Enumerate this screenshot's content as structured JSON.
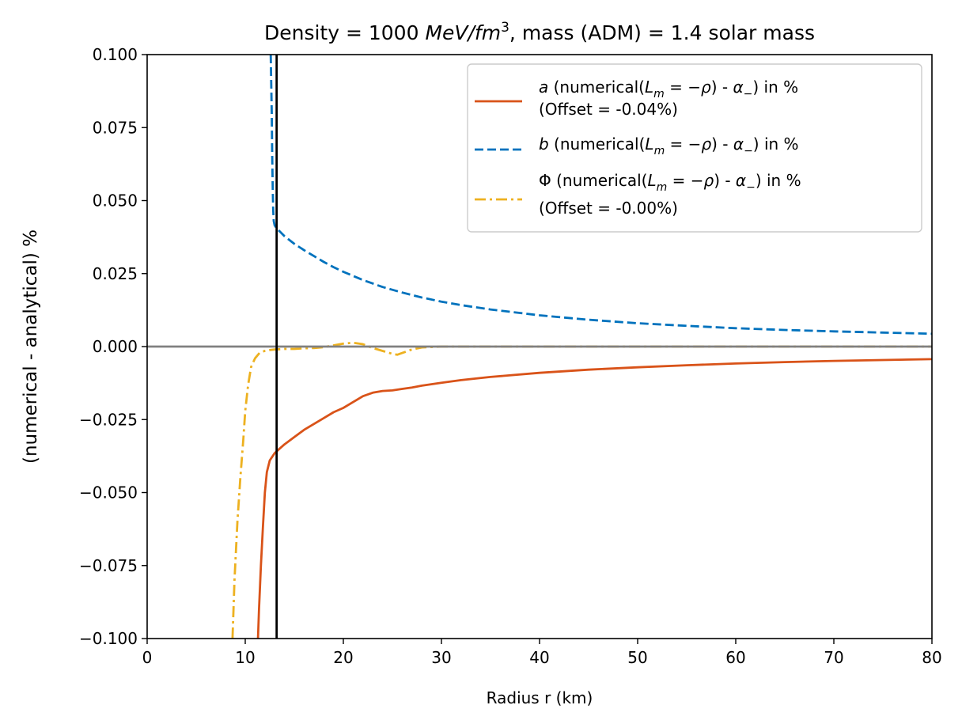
{
  "chart_data": {
    "type": "line",
    "title": "Density = 1000 MeV/fm³, mass (ADM) = 1.4 solar mass",
    "title_parts": {
      "prefix": "Density = 1000 ",
      "italic": "MeV/fm",
      "sup": "3",
      "suffix": ", mass (ADM) = 1.4 solar mass"
    },
    "xlabel": "Radius r (km)",
    "ylabel": "(numerical - analytical) %",
    "xlim": [
      0,
      80
    ],
    "ylim": [
      -0.1,
      0.1
    ],
    "xticks": [
      0,
      10,
      20,
      30,
      40,
      50,
      60,
      70,
      80
    ],
    "xtick_labels": [
      "0",
      "10",
      "20",
      "30",
      "40",
      "50",
      "60",
      "70",
      "80"
    ],
    "yticks": [
      -0.1,
      -0.075,
      -0.05,
      -0.025,
      0.0,
      0.025,
      0.05,
      0.075,
      0.1
    ],
    "ytick_labels": [
      "−0.100",
      "−0.075",
      "−0.050",
      "−0.025",
      "0.000",
      "0.025",
      "0.050",
      "0.075",
      "0.100"
    ],
    "grid": false,
    "legend_position": "top-right",
    "vline_x": 13.2,
    "hline_y": 0.0,
    "series": [
      {
        "name": "a (numerical(Lm = −ρ) - α−) in % (Offset = -0.04%)",
        "color": "#D95319",
        "dash": "solid",
        "legend_lines": [
          [
            {
              "t": "a",
              "i": true
            },
            {
              "t": " (numerical("
            },
            {
              "t": "L",
              "i": true
            },
            {
              "t": "m",
              "i": true,
              "sub": true
            },
            {
              "t": " = −"
            },
            {
              "t": "ρ",
              "i": true
            },
            {
              "t": ") - "
            },
            {
              "t": "α",
              "i": true
            },
            {
              "t": "−",
              "sub": true
            },
            {
              "t": ") in %"
            }
          ],
          [
            {
              "t": "(Offset = -0.04%)"
            }
          ]
        ],
        "x": [
          11.3,
          11.4,
          11.6,
          11.8,
          12.0,
          12.2,
          12.5,
          13.0,
          13.5,
          14.0,
          15.0,
          16.0,
          17.0,
          18.0,
          19.0,
          20.0,
          21.0,
          22.0,
          23.0,
          24.0,
          25.0,
          26.0,
          27.0,
          28.0,
          30.0,
          32.0,
          35.0,
          40.0,
          45.0,
          50.0,
          55.0,
          60.0,
          65.0,
          70.0,
          75.0,
          80.0
        ],
        "y": [
          -0.1,
          -0.09,
          -0.075,
          -0.062,
          -0.05,
          -0.043,
          -0.039,
          -0.0365,
          -0.035,
          -0.0335,
          -0.031,
          -0.0285,
          -0.0265,
          -0.0245,
          -0.0225,
          -0.021,
          -0.019,
          -0.017,
          -0.0158,
          -0.0152,
          -0.015,
          -0.0145,
          -0.014,
          -0.0134,
          -0.0124,
          -0.0115,
          -0.0104,
          -0.009,
          -0.0079,
          -0.0071,
          -0.0064,
          -0.0058,
          -0.0053,
          -0.0049,
          -0.0046,
          -0.0043
        ]
      },
      {
        "name": "b (numerical(Lm = −ρ) - α−) in %",
        "color": "#0072BD",
        "dash": "dashed",
        "legend_lines": [
          [
            {
              "t": "b",
              "i": true
            },
            {
              "t": " (numerical("
            },
            {
              "t": "L",
              "i": true
            },
            {
              "t": "m",
              "i": true,
              "sub": true
            },
            {
              "t": " = −"
            },
            {
              "t": "ρ",
              "i": true
            },
            {
              "t": ") - "
            },
            {
              "t": "α",
              "i": true
            },
            {
              "t": "−",
              "sub": true
            },
            {
              "t": ") in %"
            }
          ]
        ],
        "x": [
          12.6,
          12.7,
          12.75,
          12.8,
          12.85,
          12.9,
          13.0,
          13.2,
          13.5,
          14.0,
          15.0,
          16.0,
          17.0,
          18.0,
          19.0,
          20.0,
          22.0,
          24.0,
          26.0,
          28.0,
          30.0,
          32.0,
          35.0,
          40.0,
          45.0,
          50.0,
          55.0,
          60.0,
          65.0,
          70.0,
          75.0,
          80.0
        ],
        "y": [
          0.1,
          0.08,
          0.065,
          0.055,
          0.047,
          0.043,
          0.0415,
          0.0405,
          0.0395,
          0.0378,
          0.0352,
          0.033,
          0.031,
          0.029,
          0.0272,
          0.0256,
          0.0228,
          0.0204,
          0.0185,
          0.0168,
          0.0154,
          0.0142,
          0.0127,
          0.0107,
          0.0092,
          0.008,
          0.0071,
          0.0063,
          0.0057,
          0.0052,
          0.0048,
          0.0044
        ]
      },
      {
        "name": "Φ (numerical(Lm = −ρ) - α−) in % (Offset = -0.00%)",
        "color": "#EDB120",
        "dash": "dashdot",
        "legend_lines": [
          [
            {
              "t": "Φ"
            },
            {
              "t": " (numerical("
            },
            {
              "t": "L",
              "i": true
            },
            {
              "t": "m",
              "i": true,
              "sub": true
            },
            {
              "t": " = −"
            },
            {
              "t": "ρ",
              "i": true
            },
            {
              "t": ") - "
            },
            {
              "t": "α",
              "i": true
            },
            {
              "t": "−",
              "sub": true
            },
            {
              "t": ") in %"
            }
          ],
          [
            {
              "t": "(Offset = -0.00%)"
            }
          ]
        ],
        "x": [
          8.7,
          8.9,
          9.2,
          9.5,
          9.8,
          10.0,
          10.3,
          10.6,
          11.0,
          11.5,
          12.0,
          12.5,
          13.0,
          14.0,
          15.0,
          16.0,
          17.0,
          18.0,
          19.0,
          20.0,
          21.0,
          22.0,
          23.0,
          24.0,
          25.0,
          25.5,
          26.0,
          27.0,
          28.0,
          30.0,
          35.0,
          40.0,
          50.0,
          60.0,
          70.0,
          80.0
        ],
        "y": [
          -0.1,
          -0.08,
          -0.06,
          -0.045,
          -0.032,
          -0.022,
          -0.013,
          -0.007,
          -0.004,
          -0.002,
          -0.0015,
          -0.0012,
          -0.001,
          -0.0008,
          -0.0008,
          -0.0006,
          -0.0005,
          -0.0002,
          0.0004,
          0.001,
          0.0013,
          0.0008,
          -0.0005,
          -0.0015,
          -0.0025,
          -0.0028,
          -0.0022,
          -0.001,
          -0.0003,
          0.0,
          0.0,
          0.0,
          0.0,
          0.0,
          0.0,
          0.0
        ]
      }
    ]
  }
}
